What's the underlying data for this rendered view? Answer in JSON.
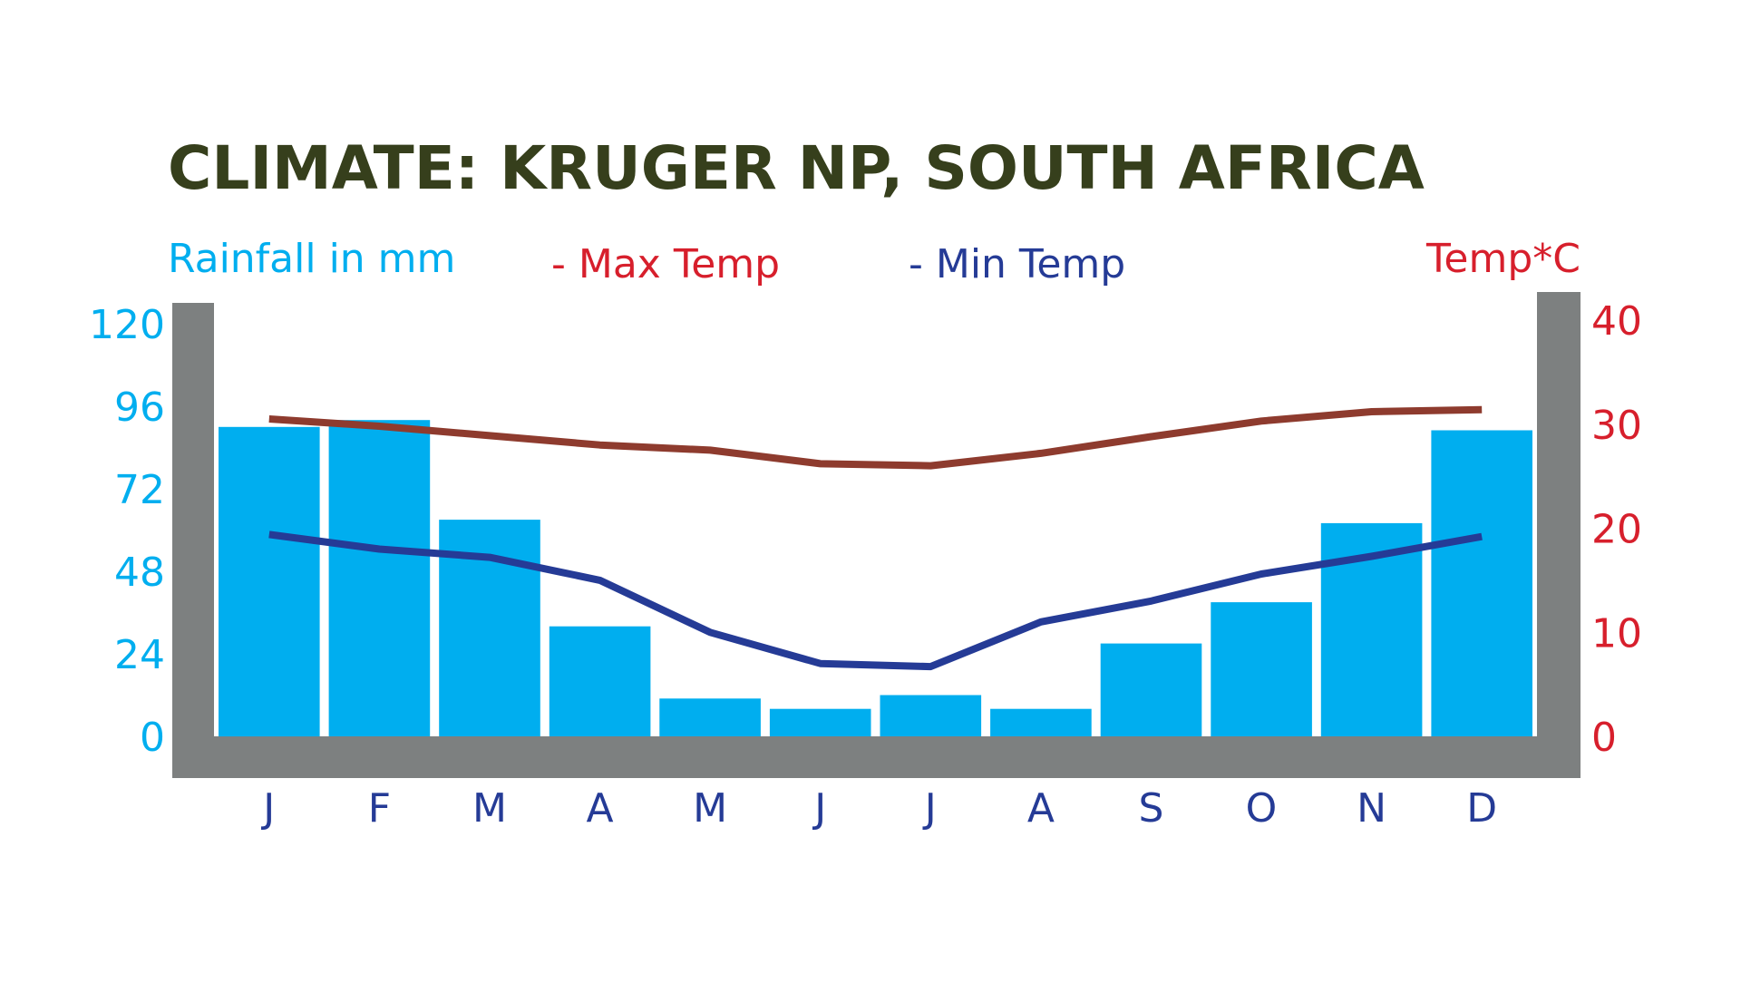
{
  "colors": {
    "title": "#363F1C",
    "rainfall": "#00AEEF",
    "max_temp": "#8E3B2E",
    "min_temp": "#253B96",
    "temp_axis": "#D71F2C",
    "month_labels": "#253B96",
    "frame": "#7D8080",
    "background": "#FFFFFF"
  },
  "chart_data": {
    "type": "bar",
    "title": "CLIMATE: KRUGER NP, SOUTH AFRICA",
    "categories": [
      "J",
      "F",
      "M",
      "A",
      "M",
      "J",
      "J",
      "A",
      "S",
      "O",
      "N",
      "D"
    ],
    "rainfall": {
      "axis_label": "Rainfall in mm",
      "ylim": [
        0,
        120
      ],
      "ticks": [
        "0",
        "24",
        "48",
        "72",
        "96",
        "120"
      ],
      "values": [
        90,
        92,
        63,
        32,
        11,
        8,
        12,
        8,
        27,
        39,
        62,
        89
      ]
    },
    "temperature": {
      "axis_label": "Temp*C",
      "ylim": [
        0,
        40
      ],
      "ticks": [
        "0",
        "10",
        "20",
        "30",
        "40"
      ]
    },
    "series": [
      {
        "name": "Max Temp",
        "legend_label": "- Max Temp",
        "type": "line",
        "axis": "right",
        "values": [
          30.5,
          29.8,
          28.9,
          28.0,
          27.5,
          26.2,
          26.0,
          27.2,
          28.8,
          30.3,
          31.2,
          31.4
        ]
      },
      {
        "name": "Min Temp",
        "legend_label": "- Min Temp",
        "type": "line",
        "axis": "right",
        "values": [
          19.4,
          18.0,
          17.2,
          15.0,
          10.0,
          7.0,
          6.7,
          11.0,
          13.0,
          15.6,
          17.3,
          19.2
        ]
      }
    ],
    "grid": false,
    "legend": "top"
  }
}
